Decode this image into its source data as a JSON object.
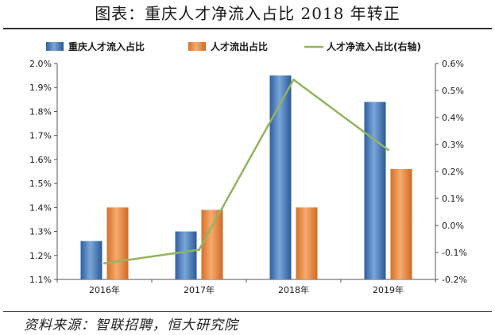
{
  "title": "图表：重庆人才净流入占比 2018 年转正",
  "source": "资料来源：智联招聘，恒大研究院",
  "chart_data": {
    "type": "bar",
    "categories": [
      "2016年",
      "2017年",
      "2018年",
      "2019年"
    ],
    "series": [
      {
        "name": "重庆人才流入占比",
        "type": "bar",
        "axis": "left",
        "values": [
          1.26,
          1.3,
          1.95,
          1.84
        ],
        "color": "#4a7cc0"
      },
      {
        "name": "人才流出占比",
        "type": "bar",
        "axis": "left",
        "values": [
          1.4,
          1.39,
          1.4,
          1.56
        ],
        "color": "#ec8a3f"
      },
      {
        "name": "人才净流入占比(右轴)",
        "type": "line",
        "axis": "right",
        "values": [
          -0.14,
          -0.09,
          0.54,
          0.28
        ],
        "color": "#93b45e"
      }
    ],
    "ylim_left": [
      1.1,
      2.0
    ],
    "ylim_right": [
      -0.2,
      0.6
    ],
    "yticks_left": [
      "1.1%",
      "1.2%",
      "1.3%",
      "1.4%",
      "1.5%",
      "1.6%",
      "1.7%",
      "1.8%",
      "1.9%",
      "2.0%"
    ],
    "yticks_right": [
      "-0.2%",
      "-0.1%",
      "0.0%",
      "0.1%",
      "0.2%",
      "0.3%",
      "0.4%",
      "0.5%",
      "0.6%"
    ],
    "legend_position": "top",
    "grid": false
  }
}
